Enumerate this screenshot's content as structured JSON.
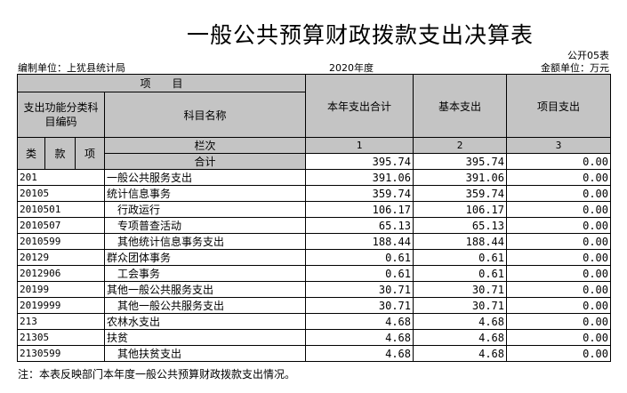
{
  "title": "一般公共预算财政拨款支出决算表",
  "table_code": "公开05表",
  "unit": "编制单位：上犹县统计局",
  "year": "2020年度",
  "money_unit": "金额单位：万元",
  "headers": {
    "item": "项　　目",
    "func_code": "支出功能分类科目编码",
    "name": "科目名称",
    "total": "本年支出合计",
    "basic": "基本支出",
    "project": "项目支出",
    "lei": "类",
    "kuan": "款",
    "xiang": "项",
    "col_no": "栏次",
    "c1": "1",
    "c2": "2",
    "c3": "3",
    "sum": "合计"
  },
  "sum": {
    "total": "395.74",
    "basic": "395.74",
    "project": "0.00"
  },
  "rows": [
    {
      "code": "201",
      "name": "一般公共服务支出",
      "total": "391.06",
      "basic": "391.06",
      "project": "0.00"
    },
    {
      "code": "20105",
      "name": "统计信息事务",
      "total": "359.74",
      "basic": "359.74",
      "project": "0.00"
    },
    {
      "code": "2010501",
      "name": "行政运行",
      "total": "106.17",
      "basic": "106.17",
      "project": "0.00"
    },
    {
      "code": "2010507",
      "name": "专项普查活动",
      "total": "65.13",
      "basic": "65.13",
      "project": "0.00"
    },
    {
      "code": "2010599",
      "name": "其他统计信息事务支出",
      "total": "188.44",
      "basic": "188.44",
      "project": "0.00"
    },
    {
      "code": "20129",
      "name": "群众团体事务",
      "total": "0.61",
      "basic": "0.61",
      "project": "0.00"
    },
    {
      "code": "2012906",
      "name": "工会事务",
      "total": "0.61",
      "basic": "0.61",
      "project": "0.00"
    },
    {
      "code": "20199",
      "name": "其他一般公共服务支出",
      "total": "30.71",
      "basic": "30.71",
      "project": "0.00"
    },
    {
      "code": "2019999",
      "name": "其他一般公共服务支出",
      "total": "30.71",
      "basic": "30.71",
      "project": "0.00"
    },
    {
      "code": "213",
      "name": "农林水支出",
      "total": "4.68",
      "basic": "4.68",
      "project": "0.00"
    },
    {
      "code": "21305",
      "name": "扶贫",
      "total": "4.68",
      "basic": "4.68",
      "project": "0.00"
    },
    {
      "code": "2130599",
      "name": "其他扶贫支出",
      "total": "4.68",
      "basic": "4.68",
      "project": "0.00"
    }
  ],
  "note": "注：本表反映部门本年度一般公共预算财政拨款支出情况。"
}
